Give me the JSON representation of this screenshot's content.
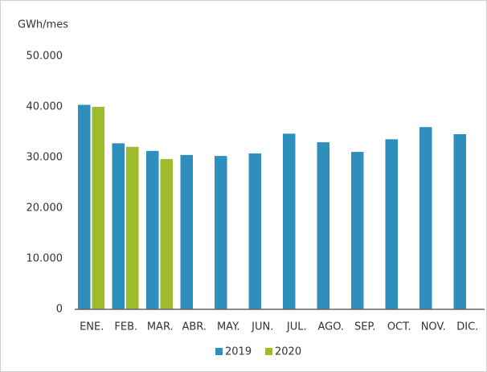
{
  "chart_data": {
    "type": "bar",
    "y_axis_label": "GWh/mes",
    "categories": [
      "ENE.",
      "FEB.",
      "MAR.",
      "ABR.",
      "MAY.",
      "JUN.",
      "JUL.",
      "AGO.",
      "SEP.",
      "OCT.",
      "NOV.",
      "DIC."
    ],
    "series": [
      {
        "name": "2019",
        "color": "#2e8fbd",
        "values": [
          40400,
          32800,
          31300,
          30500,
          30300,
          30800,
          34700,
          33000,
          31100,
          33600,
          36000,
          34600
        ]
      },
      {
        "name": "2020",
        "color": "#9dbb2a",
        "values": [
          40000,
          32100,
          29700,
          null,
          null,
          null,
          null,
          null,
          null,
          null,
          null,
          null
        ]
      }
    ],
    "ylim": [
      0,
      50000
    ],
    "yticks": [
      0,
      {
        "value": 10000,
        "label": "10.000"
      },
      {
        "value": 20000,
        "label": "20.000"
      },
      {
        "value": 30000,
        "label": "30.000"
      },
      {
        "value": 40000,
        "label": "40.000"
      },
      {
        "value": 50000,
        "label": "50.000"
      }
    ],
    "grid": false,
    "legend": "bottom"
  }
}
